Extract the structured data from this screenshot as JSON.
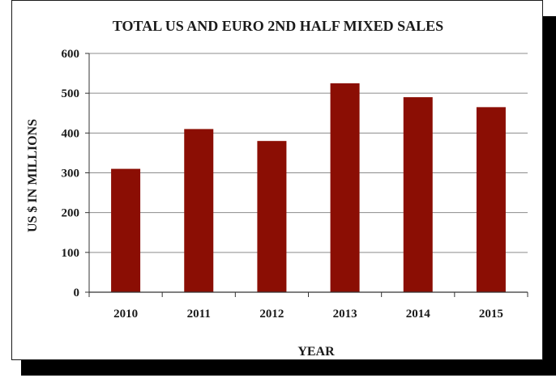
{
  "chart_data": {
    "type": "bar",
    "title": "TOTAL US AND EURO 2ND HALF MIXED SALES",
    "xlabel": "YEAR",
    "ylabel": "US $ IN MILLIONS",
    "categories": [
      "2010",
      "2011",
      "2012",
      "2013",
      "2014",
      "2015"
    ],
    "values": [
      310,
      410,
      380,
      525,
      490,
      465
    ],
    "ylim": [
      0,
      600
    ],
    "yticks": [
      "0",
      "100",
      "200",
      "300",
      "400",
      "500",
      "600"
    ],
    "grid": true,
    "legend": "none",
    "colors": {
      "bar": "#8b0e04",
      "grid": "#8c8c8c",
      "axis": "#333333"
    }
  }
}
